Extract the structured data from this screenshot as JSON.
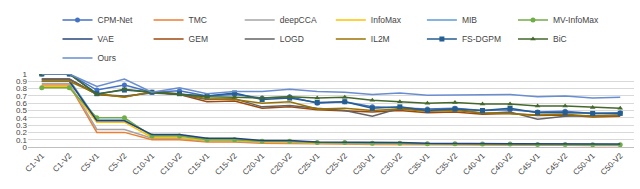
{
  "chart_data": {
    "type": "line",
    "categories": [
      "C1-V1",
      "C1-V2",
      "C5-V1",
      "C5-V2",
      "C10-V1",
      "C10-V2",
      "C15-V1",
      "C15-V2",
      "C20-V1",
      "C20-V2",
      "C25-V1",
      "C25-V2",
      "C30-V1",
      "C30-V2",
      "C35-V1",
      "C35-V2",
      "C40-V1",
      "C40-V2",
      "C45-V1",
      "C45-V2",
      "C50-V1",
      "C50-V2"
    ],
    "ylim": [
      0,
      1
    ],
    "yticks": [
      0,
      0.1,
      0.2,
      0.3,
      0.4,
      0.5,
      0.6,
      0.7,
      0.8,
      0.9,
      1
    ],
    "grid": true,
    "legend": "top",
    "series": [
      {
        "name": "CPM-Net",
        "color": "#4472c4",
        "marker": "circle",
        "values": [
          1,
          1,
          0.78,
          0.85,
          0.75,
          0.77,
          0.7,
          0.72,
          0.67,
          0.69,
          0.6,
          0.62,
          0.55,
          0.54,
          0.52,
          0.53,
          0.5,
          0.51,
          0.48,
          0.49,
          0.46,
          0.47
        ]
      },
      {
        "name": "TMC",
        "color": "#ed7d31",
        "marker": "none",
        "values": [
          0.85,
          0.85,
          0.2,
          0.2,
          0.1,
          0.1,
          0.07,
          0.07,
          0.05,
          0.05,
          0.04,
          0.04,
          0.035,
          0.035,
          0.03,
          0.03,
          0.03,
          0.03,
          0.025,
          0.025,
          0.02,
          0.02
        ]
      },
      {
        "name": "deepCCA",
        "color": "#a5a5a5",
        "marker": "none",
        "values": [
          0.87,
          0.87,
          0.24,
          0.24,
          0.12,
          0.12,
          0.08,
          0.08,
          0.06,
          0.06,
          0.05,
          0.05,
          0.04,
          0.04,
          0.035,
          0.035,
          0.03,
          0.03,
          0.03,
          0.03,
          0.025,
          0.025
        ]
      },
      {
        "name": "InfoMax",
        "color": "#ffc000",
        "marker": "none",
        "values": [
          0.83,
          0.83,
          0.34,
          0.34,
          0.13,
          0.13,
          0.09,
          0.09,
          0.07,
          0.07,
          0.05,
          0.05,
          0.045,
          0.045,
          0.04,
          0.04,
          0.035,
          0.035,
          0.03,
          0.03,
          0.03,
          0.03
        ]
      },
      {
        "name": "MIB",
        "color": "#5b9bd5",
        "marker": "none",
        "values": [
          0.92,
          0.92,
          0.37,
          0.37,
          0.16,
          0.16,
          0.11,
          0.11,
          0.08,
          0.08,
          0.06,
          0.06,
          0.05,
          0.05,
          0.04,
          0.04,
          0.04,
          0.04,
          0.035,
          0.035,
          0.03,
          0.03
        ]
      },
      {
        "name": "MV-InfoMax",
        "color": "#70ad47",
        "marker": "circle",
        "values": [
          0.81,
          0.81,
          0.4,
          0.4,
          0.15,
          0.15,
          0.1,
          0.1,
          0.08,
          0.08,
          0.06,
          0.06,
          0.05,
          0.05,
          0.045,
          0.045,
          0.04,
          0.04,
          0.035,
          0.035,
          0.03,
          0.03
        ]
      },
      {
        "name": "VAE",
        "color": "#264478",
        "marker": "none",
        "values": [
          0.9,
          0.9,
          0.36,
          0.36,
          0.17,
          0.17,
          0.12,
          0.12,
          0.09,
          0.09,
          0.07,
          0.07,
          0.06,
          0.06,
          0.05,
          0.05,
          0.05,
          0.05,
          0.04,
          0.04,
          0.04,
          0.04
        ]
      },
      {
        "name": "GEM",
        "color": "#9e480e",
        "marker": "none",
        "values": [
          0.93,
          0.93,
          0.72,
          0.69,
          0.75,
          0.72,
          0.62,
          0.63,
          0.53,
          0.55,
          0.51,
          0.5,
          0.48,
          0.5,
          0.47,
          0.48,
          0.45,
          0.46,
          0.43,
          0.44,
          0.41,
          0.42
        ]
      },
      {
        "name": "LOGD",
        "color": "#636363",
        "marker": "none",
        "values": [
          0.93,
          0.93,
          0.72,
          0.7,
          0.74,
          0.72,
          0.65,
          0.66,
          0.55,
          0.57,
          0.53,
          0.5,
          0.42,
          0.53,
          0.5,
          0.52,
          0.46,
          0.48,
          0.38,
          0.42,
          0.43,
          0.44
        ]
      },
      {
        "name": "IL2M",
        "color": "#997300",
        "marker": "none",
        "values": [
          0.9,
          0.9,
          0.73,
          0.68,
          0.76,
          0.73,
          0.66,
          0.65,
          0.6,
          0.62,
          0.52,
          0.53,
          0.5,
          0.52,
          0.49,
          0.5,
          0.47,
          0.46,
          0.44,
          0.45,
          0.42,
          0.43
        ]
      },
      {
        "name": "FS-DGPM",
        "color": "#255e91",
        "marker": "square",
        "values": [
          1,
          1,
          0.73,
          0.78,
          0.75,
          0.73,
          0.7,
          0.74,
          0.65,
          0.67,
          0.61,
          0.62,
          0.53,
          0.55,
          0.5,
          0.52,
          0.5,
          0.53,
          0.47,
          0.47,
          0.46,
          0.46
        ]
      },
      {
        "name": "BiC",
        "color": "#43682b",
        "marker": "triangle-up",
        "values": [
          1,
          1,
          0.72,
          0.79,
          0.75,
          0.72,
          0.69,
          0.68,
          0.67,
          0.69,
          0.67,
          0.68,
          0.64,
          0.62,
          0.6,
          0.61,
          0.59,
          0.59,
          0.56,
          0.56,
          0.54,
          0.53
        ]
      },
      {
        "name": "Ours",
        "color": "#698ed0",
        "marker": "none",
        "values": [
          1,
          1,
          0.83,
          0.93,
          0.75,
          0.81,
          0.73,
          0.76,
          0.76,
          0.79,
          0.76,
          0.75,
          0.72,
          0.74,
          0.71,
          0.71,
          0.71,
          0.72,
          0.69,
          0.7,
          0.67,
          0.68
        ]
      }
    ]
  }
}
